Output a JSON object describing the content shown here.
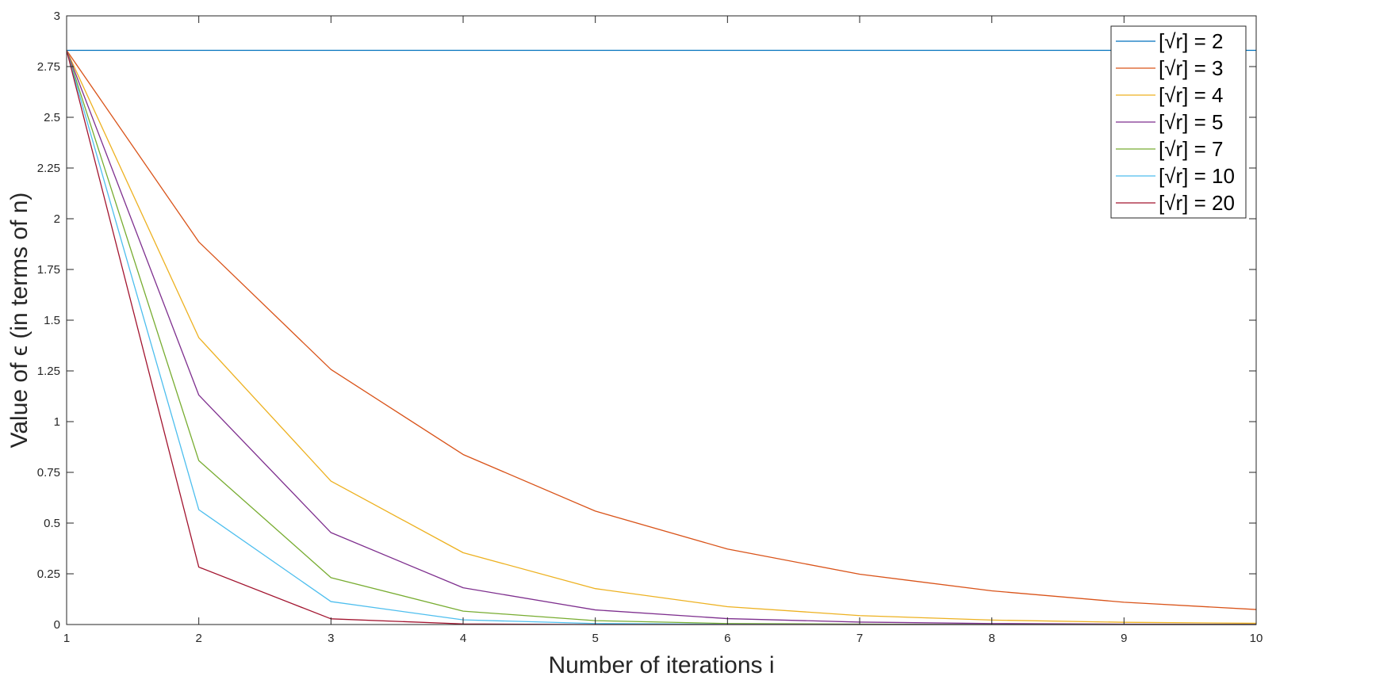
{
  "chart_data": {
    "type": "line",
    "title": "",
    "xlabel": "Number of iterations i",
    "ylabel": "Value of ϵ (in terms of n)",
    "xlim": [
      1,
      10
    ],
    "ylim": [
      0,
      3
    ],
    "x": [
      1,
      2,
      3,
      4,
      5,
      6,
      7,
      8,
      9,
      10
    ],
    "x_ticks": [
      "1",
      "2",
      "3",
      "4",
      "5",
      "6",
      "7",
      "8",
      "9",
      "10"
    ],
    "y_ticks": [
      "0",
      "0.25",
      "0.5",
      "0.75",
      "1",
      "1.25",
      "1.5",
      "1.75",
      "2",
      "2.25",
      "2.5",
      "2.75",
      "3"
    ],
    "grid": false,
    "legend_position": "top-right",
    "series": [
      {
        "name": "[√r] = 2",
        "color": "#0072BD",
        "values": [
          2.83,
          2.83,
          2.83,
          2.83,
          2.83,
          2.83,
          2.83,
          2.83,
          2.83,
          2.83
        ]
      },
      {
        "name": "[√r] = 3",
        "color": "#D95319",
        "values": [
          2.83,
          1.886,
          1.257,
          0.838,
          0.559,
          0.372,
          0.248,
          0.166,
          0.11,
          0.074
        ]
      },
      {
        "name": "[√r] = 4",
        "color": "#EDB120",
        "values": [
          2.83,
          1.414,
          0.707,
          0.354,
          0.177,
          0.088,
          0.044,
          0.022,
          0.011,
          0.006
        ]
      },
      {
        "name": "[√r] = 5",
        "color": "#7E2F8E",
        "values": [
          2.83,
          1.131,
          0.453,
          0.181,
          0.072,
          0.029,
          0.012,
          0.005,
          0.002,
          0.001
        ]
      },
      {
        "name": "[√r] = 7",
        "color": "#77AC30",
        "values": [
          2.83,
          0.808,
          0.231,
          0.066,
          0.019,
          0.005,
          0.002,
          0.0,
          0.0,
          0.0
        ]
      },
      {
        "name": "[√r] = 10",
        "color": "#4DBEEE",
        "values": [
          2.83,
          0.566,
          0.113,
          0.023,
          0.005,
          0.001,
          0.0,
          0.0,
          0.0,
          0.0
        ]
      },
      {
        "name": "[√r] = 20",
        "color": "#A2142F",
        "values": [
          2.83,
          0.283,
          0.028,
          0.003,
          0.0,
          0.0,
          0.0,
          0.0,
          0.0,
          0.0
        ]
      }
    ]
  }
}
